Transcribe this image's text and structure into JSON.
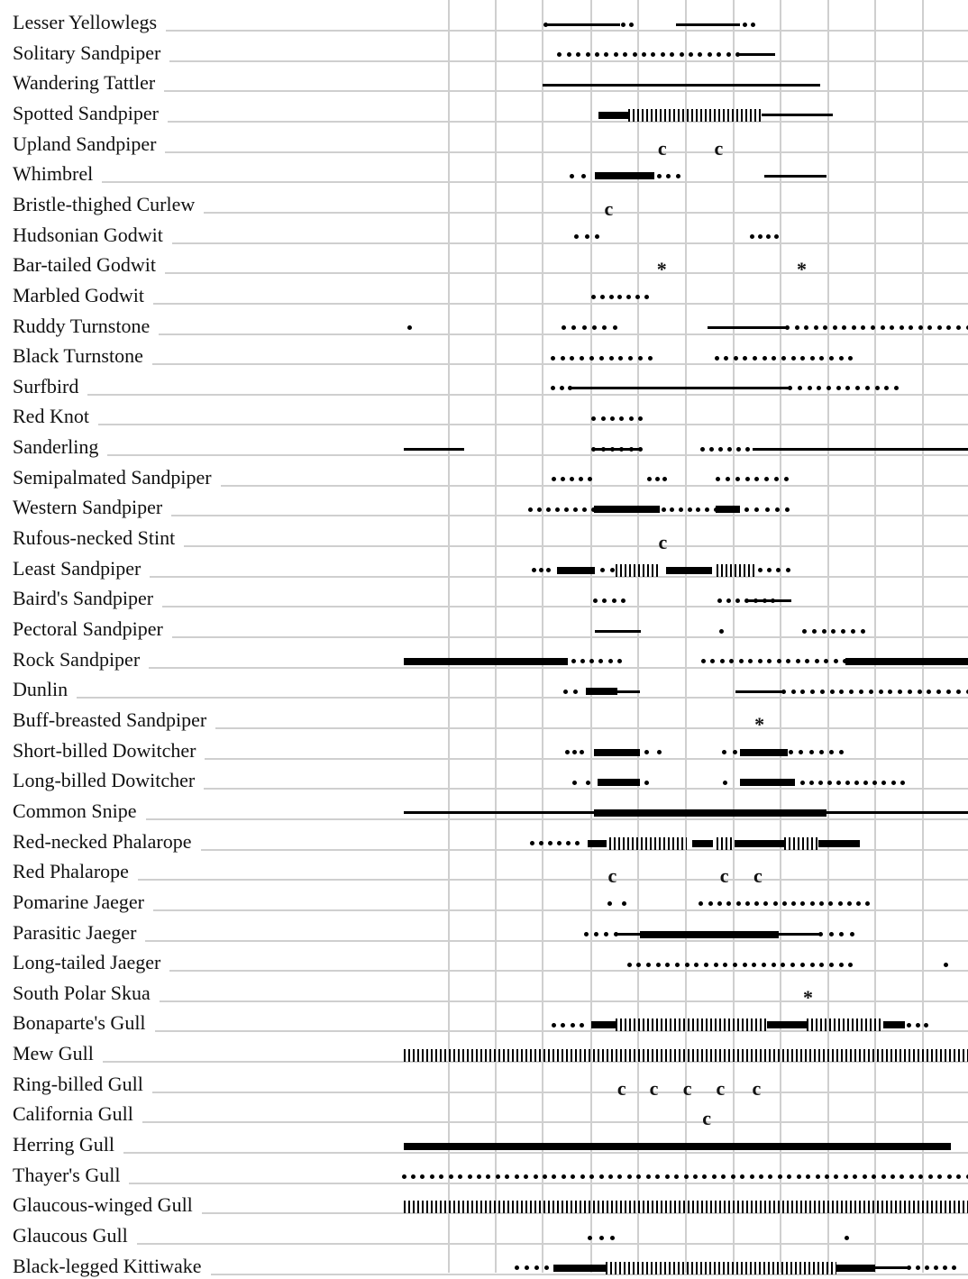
{
  "species": [
    {
      "name": "Lesser Yellowlegs",
      "segments": [
        [
          "dot",
          0.2515,
          0.2515
        ],
        [
          "thin",
          0.2515,
          0.3836
        ],
        [
          "dot",
          0.3885,
          0.4033
        ],
        [
          "thin",
          0.4819,
          0.5952
        ],
        [
          "dot",
          0.6043,
          0.6191
        ]
      ]
    },
    {
      "name": "Solitary Sandpiper",
      "segments": [
        [
          "dot",
          0.2762,
          0.5919
        ],
        [
          "thin",
          0.5919,
          0.6587
        ]
      ]
    },
    {
      "name": "Wandering Tattler",
      "segments": [
        [
          "thin",
          0.2463,
          0.7386
        ]
      ]
    },
    {
      "name": "Spotted Sandpiper",
      "segments": [
        [
          "thick",
          0.3455,
          0.3979
        ],
        [
          "hatch",
          0.3979,
          0.6349
        ],
        [
          "thin",
          0.6349,
          0.7597
        ]
      ]
    },
    {
      "name": "Upland Sandpiper",
      "segments": [
        [
          "mark",
          0.4581,
          0.4581,
          "c"
        ],
        [
          "mark",
          0.5582,
          0.5582,
          "c"
        ]
      ]
    },
    {
      "name": "Whimbrel",
      "segments": [
        [
          "dot",
          0.2972,
          0.3192
        ],
        [
          "thick",
          0.3391,
          0.444
        ],
        [
          "dot",
          0.4526,
          0.4859
        ],
        [
          "thin",
          0.6382,
          0.75
        ]
      ]
    },
    {
      "name": "Bristle-thighed Curlew",
      "segments": [
        [
          "mark",
          0.3633,
          0.3633,
          "c"
        ]
      ]
    },
    {
      "name": "Hudsonian Godwit",
      "segments": [
        [
          "dot",
          0.3053,
          0.3433
        ],
        [
          "dot",
          0.6178,
          0.6598
        ]
      ]
    },
    {
      "name": "Bar-tailed Godwit",
      "segments": [
        [
          "mark",
          0.4573,
          0.4573,
          "*"
        ],
        [
          "mark",
          0.7052,
          0.7052,
          "*"
        ]
      ]
    },
    {
      "name": "Marbled Godwit",
      "segments": [
        [
          "dot",
          0.3366,
          0.43
        ]
      ]
    },
    {
      "name": "Ruddy Turnstone",
      "segments": [
        [
          "dot",
          0.0103,
          0.0103
        ],
        [
          "dot",
          0.2831,
          0.3745
        ],
        [
          "thin",
          0.5391,
          0.6798
        ],
        [
          "dot",
          0.6798,
          1.0
        ]
      ]
    },
    {
      "name": "Black Turnstone",
      "segments": [
        [
          "dot",
          0.2643,
          0.4363
        ],
        [
          "dot",
          0.5544,
          0.7919
        ]
      ]
    },
    {
      "name": "Surfbird",
      "segments": [
        [
          "dot",
          0.2643,
          0.2955
        ],
        [
          "thin",
          0.2955,
          0.6846
        ],
        [
          "dot",
          0.6846,
          0.8732
        ]
      ]
    },
    {
      "name": "Red Knot",
      "segments": [
        [
          "dot",
          0.3366,
          0.4193
        ]
      ]
    },
    {
      "name": "Sanderling",
      "segments": [
        [
          "thin",
          0.0,
          0.1068
        ],
        [
          "dot",
          0.3366,
          0.4193
        ],
        [
          "thin",
          0.3366,
          0.4193
        ],
        [
          "dot",
          0.5288,
          0.6099
        ],
        [
          "thin",
          0.6181,
          1.0
        ]
      ]
    },
    {
      "name": "Semipalmated Sandpiper",
      "segments": [
        [
          "dot",
          0.2663,
          0.3301
        ],
        [
          "dot",
          0.4357,
          0.4628
        ],
        [
          "dot",
          0.5574,
          0.6775
        ]
      ]
    },
    {
      "name": "Western Sandpiper",
      "segments": [
        [
          "dot",
          0.2249,
          0.3364
        ],
        [
          "thick",
          0.3364,
          0.4536
        ],
        [
          "dot",
          0.4604,
          0.5532
        ],
        [
          "thick",
          0.5532,
          0.5956
        ],
        [
          "dot",
          0.6076,
          0.6802
        ]
      ]
    },
    {
      "name": "Rufous-necked Stint",
      "segments": [
        [
          "mark",
          0.459,
          0.459,
          "c"
        ]
      ]
    },
    {
      "name": "Least Sandpiper",
      "segments": [
        [
          "dot",
          0.2309,
          0.2567
        ],
        [
          "thick",
          0.2711,
          0.3389
        ],
        [
          "dot",
          0.353,
          0.3693
        ],
        [
          "hatch",
          0.375,
          0.4552
        ],
        [
          "thick",
          0.4654,
          0.5464
        ],
        [
          "hatch",
          0.554,
          0.6265
        ],
        [
          "dot",
          0.6311,
          0.6808
        ]
      ]
    },
    {
      "name": "Baird's Sandpiper",
      "segments": [
        [
          "dot",
          0.3387,
          0.3895
        ],
        [
          "dot",
          0.5602,
          0.6549
        ],
        [
          "thin",
          0.611,
          0.6876
        ]
      ]
    },
    {
      "name": "Pectoral Sandpiper",
      "segments": [
        [
          "thin",
          0.339,
          0.4195
        ],
        [
          "dot",
          0.5636,
          0.5636
        ],
        [
          "dot",
          0.71,
          0.8134
        ]
      ]
    },
    {
      "name": "Rock Sandpiper",
      "segments": [
        [
          "thick",
          0.0,
          0.2901
        ],
        [
          "dot",
          0.3005,
          0.3822
        ],
        [
          "dot",
          0.531,
          0.782
        ],
        [
          "thick",
          0.782,
          1.0
        ]
      ]
    },
    {
      "name": "Dunlin",
      "segments": [
        [
          "dot",
          0.286,
          0.3045
        ],
        [
          "thick",
          0.3232,
          0.3782
        ],
        [
          "thin",
          0.3782,
          0.4193
        ],
        [
          "thin",
          0.5874,
          0.6731
        ],
        [
          "dot",
          0.6731,
          1.0
        ]
      ]
    },
    {
      "name": "Buff-breasted Sandpiper",
      "segments": [
        [
          "mark",
          0.6304,
          0.6304,
          "*"
        ]
      ]
    },
    {
      "name": "Short-billed Dowitcher",
      "segments": [
        [
          "dot",
          0.2906,
          0.3161
        ],
        [
          "thick",
          0.3366,
          0.4193
        ],
        [
          "dot",
          0.4305,
          0.4522
        ],
        [
          "dot",
          0.5682,
          0.5864
        ],
        [
          "thick",
          0.5952,
          0.6798
        ],
        [
          "dot",
          0.6861,
          0.776
        ]
      ]
    },
    {
      "name": "Long-billed Dowitcher",
      "segments": [
        [
          "dot",
          0.3021,
          0.3265
        ],
        [
          "thick",
          0.3431,
          0.4181
        ],
        [
          "dot",
          0.43,
          0.43
        ],
        [
          "dot",
          0.5688,
          0.5688
        ],
        [
          "thick",
          0.5952,
          0.6927
        ],
        [
          "dot",
          0.7069,
          0.8835
        ]
      ]
    },
    {
      "name": "Common Snipe",
      "segments": [
        [
          "thin",
          0.0,
          1.0
        ],
        [
          "thick",
          0.3366,
          0.75
        ]
      ]
    },
    {
      "name": "Red-necked Phalarope",
      "segments": [
        [
          "dot",
          0.2272,
          0.308
        ],
        [
          "thick",
          0.3265,
          0.3589
        ],
        [
          "hatch",
          0.3645,
          0.501
        ],
        [
          "thick",
          0.5117,
          0.5476
        ],
        [
          "hatch",
          0.5545,
          0.587
        ],
        [
          "thick",
          0.587,
          0.6739
        ],
        [
          "hatch",
          0.6739,
          0.7346
        ],
        [
          "thick",
          0.7346,
          0.8089
        ]
      ]
    },
    {
      "name": "Red Phalarope",
      "segments": [
        [
          "mark",
          0.3697,
          0.3697,
          "c"
        ],
        [
          "mark",
          0.5681,
          0.5681,
          "c"
        ],
        [
          "mark",
          0.6277,
          0.6277,
          "c"
        ]
      ]
    },
    {
      "name": "Pomarine Jaeger",
      "segments": [
        [
          "dot",
          0.3658,
          0.3905
        ],
        [
          "dot",
          0.5271,
          0.8225
        ]
      ]
    },
    {
      "name": "Parasitic Jaeger",
      "segments": [
        [
          "dot",
          0.323,
          0.3763
        ],
        [
          "thin",
          0.3763,
          0.4193
        ],
        [
          "thick",
          0.4193,
          0.6651
        ],
        [
          "thin",
          0.6651,
          0.7392
        ],
        [
          "dot",
          0.7392,
          0.7947
        ]
      ]
    },
    {
      "name": "Long-tailed Jaeger",
      "segments": [
        [
          "dot",
          0.3995,
          0.7919
        ],
        [
          "dot",
          0.9615,
          0.9615
        ]
      ]
    },
    {
      "name": "South Polar Skua",
      "segments": [
        [
          "mark",
          0.7165,
          0.7165,
          "*"
        ]
      ]
    },
    {
      "name": "Bonaparte's Gull",
      "segments": [
        [
          "dot",
          0.2662,
          0.3154
        ],
        [
          "thick",
          0.333,
          0.3755
        ],
        [
          "hatch",
          0.3755,
          0.6434
        ],
        [
          "thick",
          0.6434,
          0.7136
        ],
        [
          "hatch",
          0.7136,
          0.8491
        ],
        [
          "thick",
          0.8491,
          0.8883
        ],
        [
          "dot",
          0.8961,
          0.9252
        ]
      ]
    },
    {
      "name": "Mew Gull",
      "segments": [
        [
          "hatch",
          0.0,
          1.0
        ]
      ]
    },
    {
      "name": "Ring-billed Gull",
      "segments": [
        [
          "mark",
          0.3863,
          0.3863,
          "c"
        ],
        [
          "mark",
          0.4434,
          0.4434,
          "c"
        ],
        [
          "mark",
          0.5027,
          0.5027,
          "c"
        ],
        [
          "mark",
          0.5614,
          0.5614,
          "c"
        ],
        [
          "mark",
          0.6252,
          0.6252,
          "c"
        ]
      ]
    },
    {
      "name": "California Gull",
      "segments": [
        [
          "mark",
          0.5369,
          0.5369,
          "c"
        ]
      ]
    },
    {
      "name": "Herring Gull",
      "segments": [
        [
          "thick",
          0.0,
          0.9695
        ]
      ]
    },
    {
      "name": "Thayer's Gull",
      "segments": [
        [
          "dot",
          0.0,
          1.0
        ]
      ]
    },
    {
      "name": "Glaucous-winged Gull",
      "segments": [
        [
          "hatch",
          0.0,
          1.0
        ]
      ]
    },
    {
      "name": "Glaucous Gull",
      "segments": [
        [
          "dot",
          0.3298,
          0.37
        ],
        [
          "dot",
          0.7859,
          0.7859
        ]
      ]
    },
    {
      "name": "Black-legged Kittiwake",
      "segments": [
        [
          "dot",
          0.2008,
          0.2536
        ],
        [
          "thick",
          0.2655,
          0.3581
        ],
        [
          "hatch",
          0.3581,
          0.7674
        ],
        [
          "thick",
          0.7674,
          0.8357
        ],
        [
          "thin",
          0.8357,
          0.8925
        ],
        [
          "dot",
          0.8947,
          0.9756
        ]
      ]
    }
  ]
}
